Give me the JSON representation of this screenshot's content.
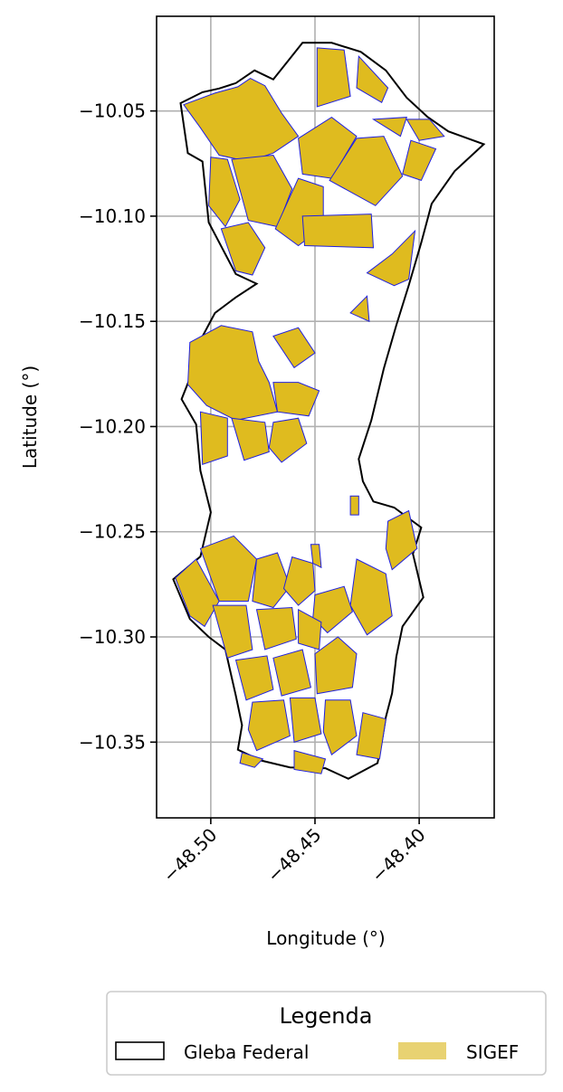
{
  "chart_data": {
    "type": "map",
    "xlabel": "Longitude (°)",
    "ylabel": "Latitude (°)",
    "xlim": [
      -48.526,
      -48.364
    ],
    "ylim": [
      -10.386,
      -10.005
    ],
    "xticks": [
      -48.5,
      -48.45,
      -48.4
    ],
    "xtick_labels": [
      "−48.50",
      "−48.45",
      "−48.40"
    ],
    "yticks": [
      -10.05,
      -10.1,
      -10.15,
      -10.2,
      -10.25,
      -10.3,
      -10.35
    ],
    "ytick_labels": [
      "−10.05",
      "−10.10",
      "−10.15",
      "−10.20",
      "−10.25",
      "−10.30",
      "−10.35"
    ],
    "grid": true,
    "legend": {
      "title": "Legenda",
      "placement": "bottom",
      "entries": [
        {
          "label": "Gleba Federal",
          "style": "outline",
          "color": "#000000"
        },
        {
          "label": "SIGEF",
          "style": "fill",
          "color": "#E8D272"
        }
      ]
    },
    "colors": {
      "gleba_outline": "#000000",
      "sigef_fill": "#DFBB1F",
      "sigef_edge": "#2020E0"
    },
    "gleba_federal": [
      [
        -48.5145,
        -10.0463
      ],
      [
        -48.504,
        -10.0411
      ],
      [
        -48.496,
        -10.0393
      ],
      [
        -48.488,
        -10.0368
      ],
      [
        -48.479,
        -10.0307
      ],
      [
        -48.47,
        -10.035
      ],
      [
        -48.463,
        -10.0263
      ],
      [
        -48.456,
        -10.0176
      ],
      [
        -48.442,
        -10.0176
      ],
      [
        -48.428,
        -10.0219
      ],
      [
        -48.416,
        -10.0307
      ],
      [
        -48.406,
        -10.0437
      ],
      [
        -48.396,
        -10.0528
      ],
      [
        -48.386,
        -10.0597
      ],
      [
        -48.369,
        -10.0658
      ],
      [
        -48.383,
        -10.0786
      ],
      [
        -48.394,
        -10.0941
      ],
      [
        -48.399,
        -10.1126
      ],
      [
        -48.405,
        -10.1329
      ],
      [
        -48.411,
        -10.1519
      ],
      [
        -48.417,
        -10.1725
      ],
      [
        -48.423,
        -10.1971
      ],
      [
        -48.429,
        -10.2154
      ],
      [
        -48.427,
        -10.226
      ],
      [
        -48.422,
        -10.2356
      ],
      [
        -48.412,
        -10.2385
      ],
      [
        -48.399,
        -10.248
      ],
      [
        -48.403,
        -10.2605
      ],
      [
        -48.398,
        -10.2812
      ],
      [
        -48.408,
        -10.295
      ],
      [
        -48.411,
        -10.3095
      ],
      [
        -48.413,
        -10.3267
      ],
      [
        -48.416,
        -10.3381
      ],
      [
        -48.418,
        -10.3501
      ],
      [
        -48.42,
        -10.36
      ],
      [
        -48.434,
        -10.3674
      ],
      [
        -48.445,
        -10.3624
      ],
      [
        -48.462,
        -10.362
      ],
      [
        -48.476,
        -10.3587
      ],
      [
        -48.487,
        -10.3536
      ],
      [
        -48.485,
        -10.342
      ],
      [
        -48.488,
        -10.3278
      ],
      [
        -48.493,
        -10.306
      ],
      [
        -48.501,
        -10.3
      ],
      [
        -48.51,
        -10.2915
      ],
      [
        -48.518,
        -10.2726
      ],
      [
        -48.505,
        -10.2618
      ],
      [
        -48.5,
        -10.2408
      ],
      [
        -48.505,
        -10.221
      ],
      [
        -48.507,
        -10.199
      ],
      [
        -48.514,
        -10.187
      ],
      [
        -48.51,
        -10.177
      ],
      [
        -48.505,
        -10.159
      ],
      [
        -48.498,
        -10.146
      ],
      [
        -48.488,
        -10.1386
      ],
      [
        -48.478,
        -10.1321
      ],
      [
        -48.488,
        -10.1275
      ],
      [
        -48.501,
        -10.103
      ],
      [
        -48.504,
        -10.074
      ],
      [
        -48.511,
        -10.07
      ],
      [
        -48.5145,
        -10.0463
      ]
    ],
    "sigef_parcels": [
      [
        [
          -48.513,
          -10.047
        ],
        [
          -48.498,
          -10.0415
        ],
        [
          -48.487,
          -10.0385
        ],
        [
          -48.481,
          -10.0345
        ],
        [
          -48.474,
          -10.038
        ],
        [
          -48.466,
          -10.051
        ],
        [
          -48.458,
          -10.062
        ],
        [
          -48.47,
          -10.07
        ],
        [
          -48.482,
          -10.074
        ],
        [
          -48.496,
          -10.071
        ],
        [
          -48.505,
          -10.058
        ],
        [
          -48.513,
          -10.047
        ]
      ],
      [
        [
          -48.5,
          -10.072
        ],
        [
          -48.492,
          -10.073
        ],
        [
          -48.486,
          -10.092
        ],
        [
          -48.493,
          -10.105
        ],
        [
          -48.501,
          -10.095
        ],
        [
          -48.5,
          -10.072
        ]
      ],
      [
        [
          -48.49,
          -10.073
        ],
        [
          -48.47,
          -10.071
        ],
        [
          -48.461,
          -10.087
        ],
        [
          -48.468,
          -10.105
        ],
        [
          -48.482,
          -10.102
        ],
        [
          -48.49,
          -10.073
        ]
      ],
      [
        [
          -48.495,
          -10.106
        ],
        [
          -48.482,
          -10.103
        ],
        [
          -48.474,
          -10.115
        ],
        [
          -48.48,
          -10.128
        ],
        [
          -48.488,
          -10.126
        ],
        [
          -48.495,
          -10.106
        ]
      ],
      [
        [
          -48.458,
          -10.063
        ],
        [
          -48.442,
          -10.053
        ],
        [
          -48.43,
          -10.062
        ],
        [
          -48.442,
          -10.082
        ],
        [
          -48.456,
          -10.08
        ],
        [
          -48.458,
          -10.063
        ]
      ],
      [
        [
          -48.446,
          -10.086
        ],
        [
          -48.458,
          -10.082
        ],
        [
          -48.469,
          -10.106
        ],
        [
          -48.458,
          -10.114
        ],
        [
          -48.446,
          -10.105
        ],
        [
          -48.446,
          -10.086
        ]
      ],
      [
        [
          -48.456,
          -10.1
        ],
        [
          -48.423,
          -10.099
        ],
        [
          -48.422,
          -10.115
        ],
        [
          -48.455,
          -10.114
        ],
        [
          -48.456,
          -10.1
        ]
      ],
      [
        [
          -48.443,
          -10.083
        ],
        [
          -48.43,
          -10.063
        ],
        [
          -48.417,
          -10.062
        ],
        [
          -48.408,
          -10.081
        ],
        [
          -48.421,
          -10.095
        ],
        [
          -48.443,
          -10.083
        ]
      ],
      [
        [
          -48.449,
          -10.02
        ],
        [
          -48.436,
          -10.021
        ],
        [
          -48.433,
          -10.043
        ],
        [
          -48.449,
          -10.048
        ],
        [
          -48.449,
          -10.02
        ]
      ],
      [
        [
          -48.429,
          -10.024
        ],
        [
          -48.415,
          -10.039
        ],
        [
          -48.418,
          -10.046
        ],
        [
          -48.43,
          -10.039
        ],
        [
          -48.429,
          -10.024
        ]
      ],
      [
        [
          -48.422,
          -10.054
        ],
        [
          -48.406,
          -10.053
        ],
        [
          -48.409,
          -10.062
        ],
        [
          -48.422,
          -10.054
        ]
      ],
      [
        [
          -48.406,
          -10.054
        ],
        [
          -48.395,
          -10.054
        ],
        [
          -48.388,
          -10.062
        ],
        [
          -48.4,
          -10.064
        ],
        [
          -48.406,
          -10.054
        ]
      ],
      [
        [
          -48.404,
          -10.064
        ],
        [
          -48.392,
          -10.068
        ],
        [
          -48.399,
          -10.083
        ],
        [
          -48.408,
          -10.08
        ],
        [
          -48.404,
          -10.064
        ]
      ],
      [
        [
          -48.402,
          -10.107
        ],
        [
          -48.413,
          -10.118
        ],
        [
          -48.425,
          -10.127
        ],
        [
          -48.412,
          -10.133
        ],
        [
          -48.405,
          -10.13
        ],
        [
          -48.402,
          -10.107
        ]
      ],
      [
        [
          -48.425,
          -10.138
        ],
        [
          -48.433,
          -10.146
        ],
        [
          -48.424,
          -10.15
        ],
        [
          -48.425,
          -10.138
        ]
      ],
      [
        [
          -48.51,
          -10.16
        ],
        [
          -48.495,
          -10.152
        ],
        [
          -48.48,
          -10.155
        ],
        [
          -48.477,
          -10.169
        ],
        [
          -48.472,
          -10.179
        ],
        [
          -48.468,
          -10.193
        ],
        [
          -48.488,
          -10.197
        ],
        [
          -48.502,
          -10.19
        ],
        [
          -48.511,
          -10.18
        ],
        [
          -48.51,
          -10.16
        ]
      ],
      [
        [
          -48.47,
          -10.179
        ],
        [
          -48.458,
          -10.179
        ],
        [
          -48.448,
          -10.183
        ],
        [
          -48.453,
          -10.195
        ],
        [
          -48.468,
          -10.193
        ],
        [
          -48.47,
          -10.179
        ]
      ],
      [
        [
          -48.505,
          -10.193
        ],
        [
          -48.492,
          -10.196
        ],
        [
          -48.492,
          -10.214
        ],
        [
          -48.504,
          -10.218
        ],
        [
          -48.505,
          -10.193
        ]
      ],
      [
        [
          -48.49,
          -10.196
        ],
        [
          -48.474,
          -10.198
        ],
        [
          -48.472,
          -10.212
        ],
        [
          -48.484,
          -10.216
        ],
        [
          -48.49,
          -10.196
        ]
      ],
      [
        [
          -48.47,
          -10.198
        ],
        [
          -48.458,
          -10.196
        ],
        [
          -48.454,
          -10.208
        ],
        [
          -48.466,
          -10.217
        ],
        [
          -48.472,
          -10.21
        ],
        [
          -48.47,
          -10.198
        ]
      ],
      [
        [
          -48.47,
          -10.157
        ],
        [
          -48.458,
          -10.153
        ],
        [
          -48.45,
          -10.165
        ],
        [
          -48.46,
          -10.172
        ],
        [
          -48.47,
          -10.157
        ]
      ],
      [
        [
          -48.452,
          -10.256
        ],
        [
          -48.448,
          -10.256
        ],
        [
          -48.447,
          -10.267
        ],
        [
          -48.451,
          -10.265
        ],
        [
          -48.452,
          -10.256
        ]
      ],
      [
        [
          -48.433,
          -10.233
        ],
        [
          -48.429,
          -10.233
        ],
        [
          -48.429,
          -10.242
        ],
        [
          -48.433,
          -10.242
        ],
        [
          -48.433,
          -10.233
        ]
      ],
      [
        [
          -48.505,
          -10.258
        ],
        [
          -48.489,
          -10.252
        ],
        [
          -48.478,
          -10.263
        ],
        [
          -48.482,
          -10.283
        ],
        [
          -48.496,
          -10.283
        ],
        [
          -48.505,
          -10.258
        ]
      ],
      [
        [
          -48.517,
          -10.272
        ],
        [
          -48.507,
          -10.263
        ],
        [
          -48.496,
          -10.283
        ],
        [
          -48.503,
          -10.295
        ],
        [
          -48.51,
          -10.29
        ],
        [
          -48.517,
          -10.272
        ]
      ],
      [
        [
          -48.478,
          -10.263
        ],
        [
          -48.468,
          -10.26
        ],
        [
          -48.462,
          -10.276
        ],
        [
          -48.47,
          -10.286
        ],
        [
          -48.48,
          -10.283
        ],
        [
          -48.478,
          -10.263
        ]
      ],
      [
        [
          -48.461,
          -10.262
        ],
        [
          -48.451,
          -10.265
        ],
        [
          -48.45,
          -10.278
        ],
        [
          -48.458,
          -10.285
        ],
        [
          -48.465,
          -10.277
        ],
        [
          -48.461,
          -10.262
        ]
      ],
      [
        [
          -48.45,
          -10.28
        ],
        [
          -48.436,
          -10.276
        ],
        [
          -48.432,
          -10.288
        ],
        [
          -48.444,
          -10.298
        ],
        [
          -48.451,
          -10.291
        ],
        [
          -48.45,
          -10.28
        ]
      ],
      [
        [
          -48.499,
          -10.285
        ],
        [
          -48.483,
          -10.285
        ],
        [
          -48.48,
          -10.306
        ],
        [
          -48.492,
          -10.31
        ],
        [
          -48.499,
          -10.285
        ]
      ],
      [
        [
          -48.478,
          -10.287
        ],
        [
          -48.461,
          -10.286
        ],
        [
          -48.459,
          -10.301
        ],
        [
          -48.474,
          -10.306
        ],
        [
          -48.478,
          -10.287
        ]
      ],
      [
        [
          -48.458,
          -10.287
        ],
        [
          -48.447,
          -10.293
        ],
        [
          -48.448,
          -10.306
        ],
        [
          -48.458,
          -10.303
        ],
        [
          -48.458,
          -10.287
        ]
      ],
      [
        [
          -48.43,
          -10.263
        ],
        [
          -48.416,
          -10.27
        ],
        [
          -48.413,
          -10.29
        ],
        [
          -48.425,
          -10.299
        ],
        [
          -48.433,
          -10.285
        ],
        [
          -48.43,
          -10.263
        ]
      ],
      [
        [
          -48.415,
          -10.245
        ],
        [
          -48.405,
          -10.24
        ],
        [
          -48.401,
          -10.258
        ],
        [
          -48.413,
          -10.268
        ],
        [
          -48.416,
          -10.258
        ],
        [
          -48.415,
          -10.245
        ]
      ],
      [
        [
          -48.488,
          -10.311
        ],
        [
          -48.473,
          -10.309
        ],
        [
          -48.47,
          -10.325
        ],
        [
          -48.483,
          -10.33
        ],
        [
          -48.488,
          -10.311
        ]
      ],
      [
        [
          -48.47,
          -10.31
        ],
        [
          -48.456,
          -10.306
        ],
        [
          -48.452,
          -10.324
        ],
        [
          -48.466,
          -10.328
        ],
        [
          -48.47,
          -10.31
        ]
      ],
      [
        [
          -48.45,
          -10.308
        ],
        [
          -48.439,
          -10.3
        ],
        [
          -48.43,
          -10.308
        ],
        [
          -48.432,
          -10.324
        ],
        [
          -48.449,
          -10.327
        ],
        [
          -48.45,
          -10.308
        ]
      ],
      [
        [
          -48.48,
          -10.331
        ],
        [
          -48.465,
          -10.33
        ],
        [
          -48.462,
          -10.347
        ],
        [
          -48.478,
          -10.354
        ],
        [
          -48.482,
          -10.344
        ],
        [
          -48.48,
          -10.331
        ]
      ],
      [
        [
          -48.462,
          -10.329
        ],
        [
          -48.45,
          -10.329
        ],
        [
          -48.447,
          -10.346
        ],
        [
          -48.46,
          -10.35
        ],
        [
          -48.462,
          -10.329
        ]
      ],
      [
        [
          -48.445,
          -10.33
        ],
        [
          -48.433,
          -10.33
        ],
        [
          -48.43,
          -10.347
        ],
        [
          -48.442,
          -10.356
        ],
        [
          -48.446,
          -10.345
        ],
        [
          -48.445,
          -10.33
        ]
      ],
      [
        [
          -48.427,
          -10.336
        ],
        [
          -48.416,
          -10.339
        ],
        [
          -48.419,
          -10.358
        ],
        [
          -48.43,
          -10.356
        ],
        [
          -48.427,
          -10.336
        ]
      ],
      [
        [
          -48.485,
          -10.355
        ],
        [
          -48.475,
          -10.358
        ],
        [
          -48.479,
          -10.362
        ],
        [
          -48.486,
          -10.36
        ],
        [
          -48.485,
          -10.355
        ]
      ],
      [
        [
          -48.46,
          -10.354
        ],
        [
          -48.445,
          -10.358
        ],
        [
          -48.447,
          -10.365
        ],
        [
          -48.46,
          -10.363
        ],
        [
          -48.46,
          -10.354
        ]
      ]
    ]
  }
}
